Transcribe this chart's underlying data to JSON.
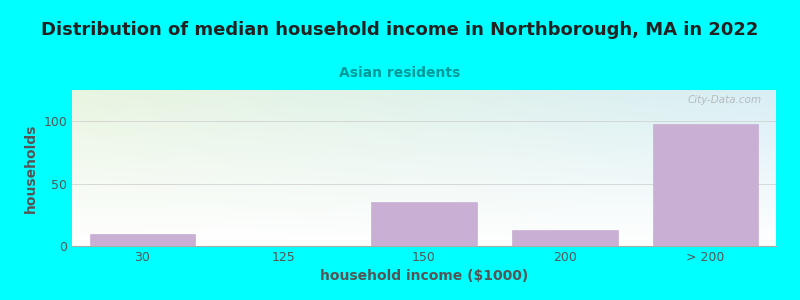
{
  "title": "Distribution of median household income in Northborough, MA in 2022",
  "subtitle": "Asian residents",
  "xlabel": "household income ($1000)",
  "ylabel": "households",
  "categories": [
    "30",
    "125",
    "150",
    "200",
    "> 200"
  ],
  "values": [
    10,
    0,
    35,
    13,
    98
  ],
  "bar_color": "#c9afd4",
  "bar_edge_color": "#c9afd4",
  "background_color": "#00ffff",
  "plot_bg_gradient_topleft": "#e8f5e0",
  "plot_bg_gradient_topright": "#d8eef5",
  "plot_bg_gradient_bottom": "#ffffff",
  "title_fontsize": 13,
  "subtitle_fontsize": 10,
  "subtitle_color": "#009999",
  "axis_label_fontsize": 10,
  "tick_label_fontsize": 9,
  "ylabel_color": "#555555",
  "xlabel_color": "#555555",
  "yticks": [
    0,
    50,
    100
  ],
  "ylim": [
    0,
    125
  ],
  "watermark": "City-Data.com",
  "watermark_color": "#aaaaaa"
}
